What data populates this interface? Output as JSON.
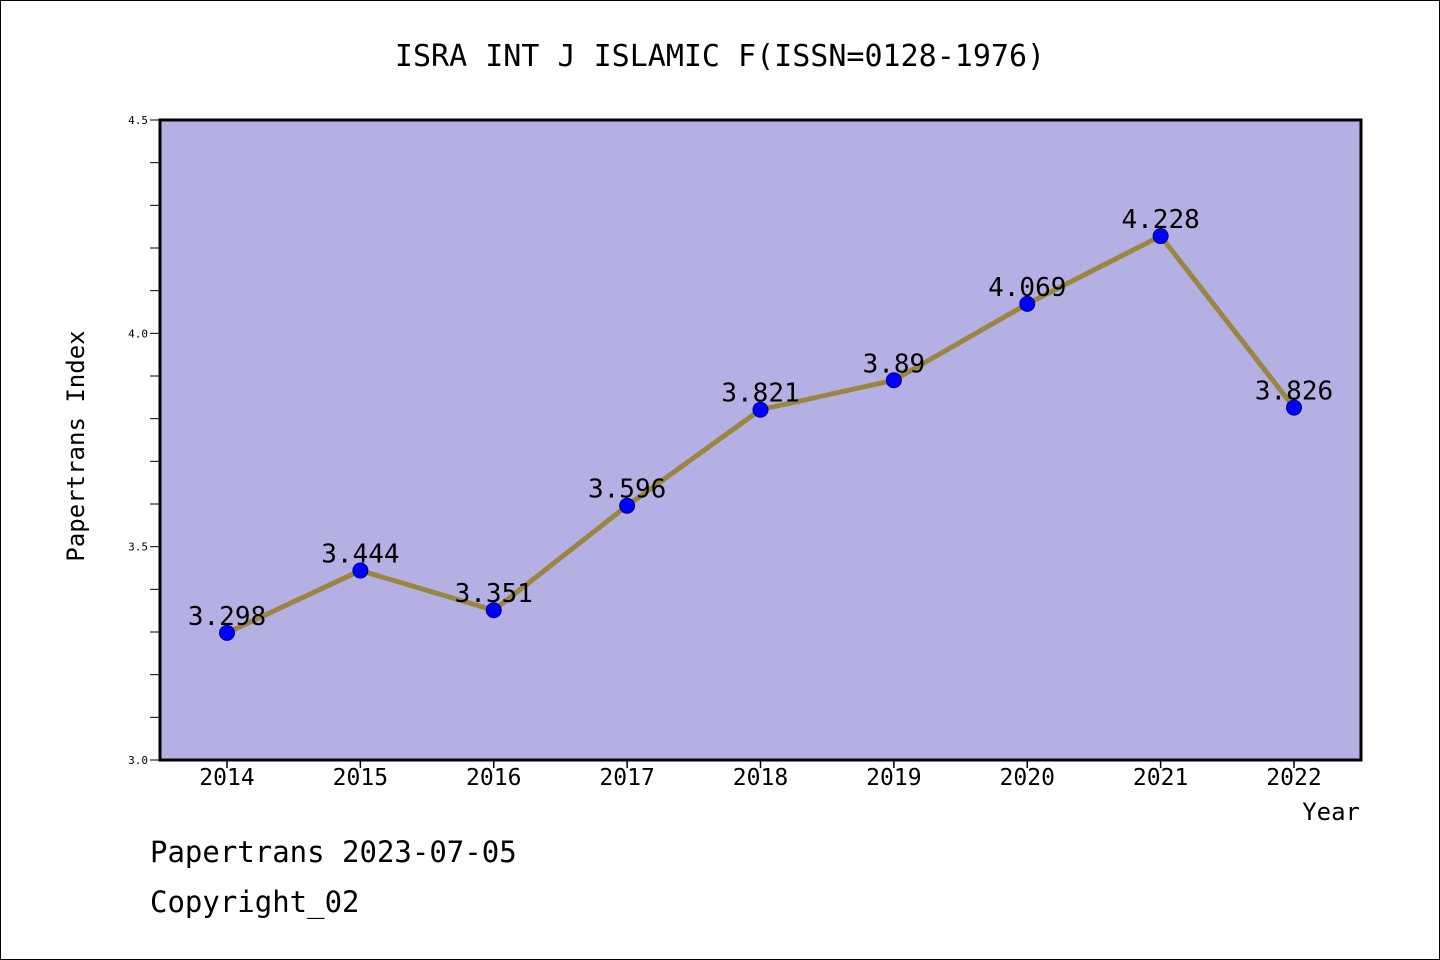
{
  "chart_data": {
    "type": "line",
    "title": "ISRA INT J ISLAMIC F(ISSN=0128-1976)",
    "xlabel": "Year",
    "ylabel": "Papertrans Index",
    "x": [
      "2014",
      "2015",
      "2016",
      "2017",
      "2018",
      "2019",
      "2020",
      "2021",
      "2022"
    ],
    "values": [
      3.298,
      3.444,
      3.351,
      3.596,
      3.821,
      3.89,
      4.069,
      4.228,
      3.826
    ],
    "data_labels": [
      "3.298",
      "3.444",
      "3.351",
      "3.596",
      "3.821",
      "3.89",
      "4.069",
      "4.228",
      "3.826"
    ],
    "ylim": [
      3.0,
      4.5
    ],
    "y_ticks": [
      "3.0",
      "3.5",
      "4.0",
      "4.5"
    ],
    "y_tick_values": [
      3.0,
      3.5,
      4.0,
      4.5
    ],
    "y_minor_step": 0.1,
    "grid": false,
    "colors": {
      "plot_background": "#b5b0e3",
      "line": "#9a8641",
      "marker": "#0000ff",
      "marker_edge": "#00008b"
    }
  },
  "footer": {
    "date_line": "Papertrans 2023-07-05",
    "copyright": "Copyright_02"
  }
}
